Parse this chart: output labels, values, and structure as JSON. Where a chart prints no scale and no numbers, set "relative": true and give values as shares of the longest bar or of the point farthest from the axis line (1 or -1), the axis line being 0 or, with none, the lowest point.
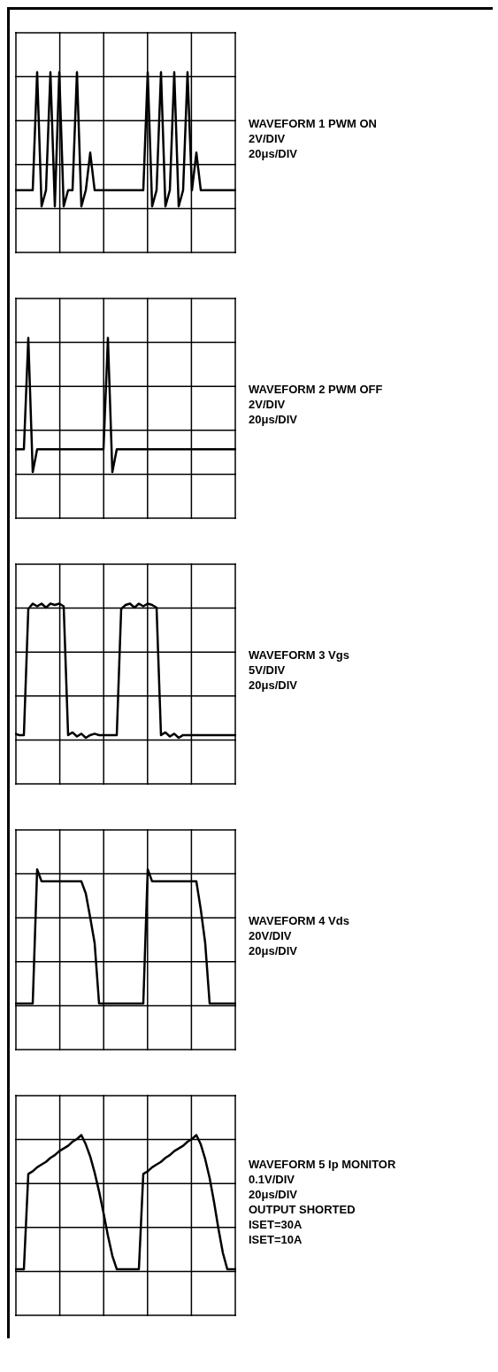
{
  "chart_data": [
    {
      "type": "line",
      "annotations": [
        "WAVEFORM 1 PWM ON",
        "2V/DIV",
        "20μs/DIV"
      ],
      "relative": true,
      "grid": true,
      "color": "#000000",
      "categories": [
        null,
        null,
        null,
        null,
        null,
        null,
        null,
        null,
        null,
        null,
        null,
        null,
        null,
        null,
        null,
        null,
        null,
        null,
        null,
        null,
        null,
        null,
        null,
        null,
        null,
        null,
        null,
        null,
        null,
        null,
        null,
        null,
        null,
        null,
        null,
        null,
        null,
        null,
        null,
        null,
        null,
        null,
        null,
        null,
        null,
        null,
        null,
        null,
        null,
        null,
        null
      ],
      "values": [
        0.12,
        0.12,
        0.12,
        0.12,
        0.12,
        1,
        0,
        0.12,
        1,
        0,
        1,
        0,
        0.12,
        0.12,
        1,
        0,
        0.12,
        0.4,
        0.12,
        0.12,
        0.12,
        0.12,
        0.12,
        0.12,
        0.12,
        0.12,
        0.12,
        0.12,
        0.12,
        0.12,
        1,
        0,
        0.12,
        1,
        0,
        0.12,
        1,
        0,
        0.12,
        1,
        0.12,
        0.4,
        0.12,
        0.12,
        0.12,
        0.12,
        0.12,
        0.12,
        0.12,
        0.12,
        0.12
      ]
    },
    {
      "type": "line",
      "annotations": [
        "WAVEFORM 2 PWM OFF",
        "2V/DIV",
        "20μs/DIV"
      ],
      "relative": true,
      "grid": true,
      "color": "#000000",
      "categories": [
        null,
        null,
        null,
        null,
        null,
        null,
        null,
        null,
        null,
        null,
        null,
        null,
        null,
        null,
        null,
        null,
        null,
        null,
        null,
        null,
        null,
        null,
        null,
        null,
        null,
        null,
        null,
        null,
        null,
        null,
        null,
        null,
        null,
        null,
        null,
        null,
        null,
        null,
        null,
        null,
        null,
        null,
        null,
        null,
        null,
        null,
        null,
        null,
        null,
        null,
        null
      ],
      "values": [
        0.17,
        0.17,
        0.17,
        1,
        0,
        0.17,
        0.17,
        0.17,
        0.17,
        0.17,
        0.17,
        0.17,
        0.17,
        0.17,
        0.17,
        0.17,
        0.17,
        0.17,
        0.17,
        0.17,
        0.17,
        1,
        0,
        0.17,
        0.17,
        0.17,
        0.17,
        0.17,
        0.17,
        0.17,
        0.17,
        0.17,
        0.17,
        0.17,
        0.17,
        0.17,
        0.17,
        0.17,
        0.17,
        0.17,
        0.17,
        0.17,
        0.17,
        0.17,
        0.17,
        0.17,
        0.17,
        0.17,
        0.17,
        0.17,
        0.17
      ]
    },
    {
      "type": "line",
      "annotations": [
        "WAVEFORM 3 Vgs",
        "5V/DIV",
        "20μs/DIV"
      ],
      "relative": true,
      "grid": true,
      "color": "#000000",
      "categories": [
        null,
        null,
        null,
        null,
        null,
        null,
        null,
        null,
        null,
        null,
        null,
        null,
        null,
        null,
        null,
        null,
        null,
        null,
        null,
        null,
        null,
        null,
        null,
        null,
        null,
        null,
        null,
        null,
        null,
        null,
        null,
        null,
        null,
        null,
        null,
        null,
        null,
        null,
        null,
        null,
        null,
        null,
        null,
        null,
        null,
        null,
        null,
        null,
        null,
        null,
        null
      ],
      "values": [
        0.03,
        0.02,
        0.02,
        0.96,
        1,
        0.98,
        1,
        0.97,
        1,
        0.99,
        1,
        0.98,
        0.02,
        0.04,
        0.01,
        0.03,
        0,
        0.02,
        0.03,
        0.02,
        0.02,
        0.02,
        0.02,
        0.02,
        0.96,
        0.99,
        1,
        0.97,
        1,
        0.98,
        1,
        0.99,
        0.97,
        0.02,
        0.04,
        0.01,
        0.03,
        0,
        0.02,
        0.02,
        0.02,
        0.02,
        0.02,
        0.02,
        0.02,
        0.02,
        0.02,
        0.02,
        0.02,
        0.02,
        0.02
      ]
    },
    {
      "type": "line",
      "annotations": [
        "WAVEFORM 4 Vds",
        "20V/DIV",
        "20μs/DIV"
      ],
      "relative": true,
      "grid": true,
      "color": "#000000",
      "categories": [
        null,
        null,
        null,
        null,
        null,
        null,
        null,
        null,
        null,
        null,
        null,
        null,
        null,
        null,
        null,
        null,
        null,
        null,
        null,
        null,
        null,
        null,
        null,
        null,
        null,
        null,
        null,
        null,
        null,
        null,
        null,
        null,
        null,
        null,
        null,
        null,
        null,
        null,
        null,
        null,
        null,
        null,
        null,
        null,
        null,
        null,
        null,
        null,
        null,
        null,
        null
      ],
      "values": [
        0,
        0,
        0,
        0,
        0,
        1,
        0.91,
        0.91,
        0.91,
        0.91,
        0.91,
        0.91,
        0.91,
        0.91,
        0.91,
        0.91,
        0.82,
        0.64,
        0.45,
        0,
        0,
        0,
        0,
        0,
        0,
        0,
        0,
        0,
        0,
        0,
        1,
        0.91,
        0.91,
        0.91,
        0.91,
        0.91,
        0.91,
        0.91,
        0.91,
        0.91,
        0.91,
        0.91,
        0.7,
        0.45,
        0,
        0,
        0,
        0,
        0,
        0,
        0
      ]
    },
    {
      "type": "line",
      "annotations": [
        "WAVEFORM 5  Ip MONITOR",
        "0.1V/DIV",
        "20μs/DIV",
        "OUTPUT SHORTED",
        "ISET=30A",
        "ISET=10A"
      ],
      "relative": true,
      "grid": true,
      "color": "#000000",
      "categories": [
        null,
        null,
        null,
        null,
        null,
        null,
        null,
        null,
        null,
        null,
        null,
        null,
        null,
        null,
        null,
        null,
        null,
        null,
        null,
        null,
        null,
        null,
        null,
        null,
        null,
        null,
        null,
        null,
        null,
        null,
        null,
        null,
        null,
        null,
        null,
        null,
        null,
        null,
        null,
        null,
        null,
        null,
        null,
        null,
        null,
        null,
        null,
        null,
        null,
        null,
        null
      ],
      "values": [
        0,
        0,
        0,
        0.71,
        0.73,
        0.76,
        0.78,
        0.8,
        0.83,
        0.85,
        0.88,
        0.9,
        0.92,
        0.95,
        0.97,
        1,
        0.93,
        0.84,
        0.72,
        0.58,
        0.42,
        0.25,
        0.1,
        0,
        0,
        0,
        0,
        0,
        0,
        0.71,
        0.73,
        0.76,
        0.78,
        0.8,
        0.83,
        0.85,
        0.88,
        0.9,
        0.92,
        0.95,
        0.97,
        1,
        0.93,
        0.82,
        0.68,
        0.5,
        0.3,
        0.12,
        0,
        0,
        0
      ]
    }
  ]
}
